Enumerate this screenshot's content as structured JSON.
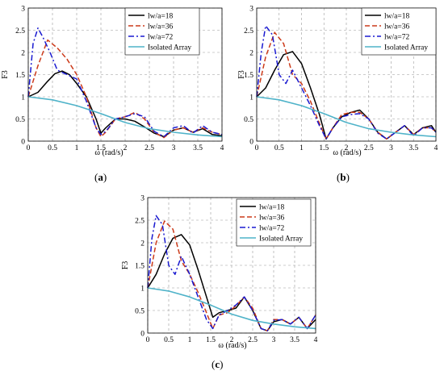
{
  "colors": {
    "black": "#000000",
    "red": "#cc3a1a",
    "blue": "#1a1ad0",
    "cyan": "#4fb3c9"
  },
  "chart_data": [
    {
      "type": "line",
      "caption": "a",
      "xlabel": "ω (rad/s)",
      "ylabel": "F3",
      "xlim": [
        0,
        4
      ],
      "ylim": [
        0,
        3
      ],
      "grid": true,
      "legend_position": "top-right",
      "xticks": [
        "0",
        "0.5",
        "1",
        "1.5",
        "2",
        "2.5",
        "3",
        "3.5",
        "4"
      ],
      "yticks": [
        "0",
        "0.5",
        "1",
        "1.5",
        "2",
        "2.5",
        "3"
      ],
      "legend": [
        "lw/a=18",
        "lw/a=36",
        "lw/a=72",
        "Isolated Array"
      ],
      "series": [
        {
          "name": "lw/a=18",
          "style": "solid",
          "color": "black",
          "x": [
            0,
            0.2,
            0.4,
            0.55,
            0.7,
            0.85,
            1.0,
            1.2,
            1.4,
            1.5,
            1.6,
            1.8,
            2.0,
            2.2,
            2.4,
            2.6,
            2.8,
            3.0,
            3.2,
            3.4,
            3.6,
            3.8,
            4.0
          ],
          "y": [
            1.0,
            1.1,
            1.35,
            1.52,
            1.58,
            1.5,
            1.3,
            1.0,
            0.5,
            0.18,
            0.3,
            0.5,
            0.5,
            0.45,
            0.32,
            0.18,
            0.1,
            0.25,
            0.3,
            0.2,
            0.28,
            0.15,
            0.12
          ]
        },
        {
          "name": "lw/a=36",
          "style": "dashed",
          "color": "red",
          "x": [
            0,
            0.2,
            0.4,
            0.6,
            0.8,
            1.0,
            1.2,
            1.4,
            1.5,
            1.6,
            1.8,
            2.0,
            2.2,
            2.4,
            2.6,
            2.8,
            3.0,
            3.2,
            3.4,
            3.6,
            3.8,
            4.0
          ],
          "y": [
            1.0,
            1.7,
            2.28,
            2.1,
            1.85,
            1.5,
            1.0,
            0.3,
            0.1,
            0.2,
            0.5,
            0.55,
            0.65,
            0.5,
            0.2,
            0.08,
            0.25,
            0.3,
            0.2,
            0.3,
            0.2,
            0.15
          ]
        },
        {
          "name": "lw/a=72",
          "style": "dashdot",
          "color": "blue",
          "x": [
            0,
            0.1,
            0.2,
            0.3,
            0.45,
            0.6,
            0.8,
            1.0,
            1.2,
            1.4,
            1.5,
            1.6,
            1.8,
            2.0,
            2.2,
            2.4,
            2.6,
            2.8,
            3.0,
            3.2,
            3.4,
            3.6,
            3.8,
            4.0
          ],
          "y": [
            1.0,
            2.2,
            2.55,
            2.35,
            2.0,
            1.6,
            1.5,
            1.4,
            0.9,
            0.3,
            0.15,
            0.22,
            0.5,
            0.55,
            0.62,
            0.55,
            0.22,
            0.1,
            0.3,
            0.35,
            0.18,
            0.35,
            0.2,
            0.15
          ]
        },
        {
          "name": "Isolated Array",
          "style": "solid",
          "color": "cyan",
          "x": [
            0,
            0.5,
            1.0,
            1.5,
            2.0,
            2.5,
            3.0,
            3.5,
            4.0
          ],
          "y": [
            1.0,
            0.93,
            0.8,
            0.62,
            0.42,
            0.28,
            0.2,
            0.14,
            0.1
          ]
        }
      ]
    },
    {
      "type": "line",
      "caption": "b",
      "xlabel": "ω (rad/s)",
      "ylabel": "F3",
      "xlim": [
        0,
        4
      ],
      "ylim": [
        0,
        3
      ],
      "grid": true,
      "legend_position": "top-right",
      "xticks": [
        "0",
        "0.5",
        "1",
        "1.5",
        "2",
        "2.5",
        "3",
        "3.5",
        "4"
      ],
      "yticks": [
        "0",
        "0.5",
        "1",
        "1.5",
        "2",
        "2.5",
        "3"
      ],
      "legend": [
        "lw/a=18",
        "lw/a=36",
        "lw/a=72",
        "Isolated Array"
      ],
      "series": [
        {
          "name": "lw/a=18",
          "style": "solid",
          "color": "black",
          "x": [
            0,
            0.2,
            0.4,
            0.6,
            0.8,
            1.0,
            1.2,
            1.4,
            1.55,
            1.7,
            1.9,
            2.1,
            2.3,
            2.5,
            2.7,
            2.9,
            3.1,
            3.3,
            3.5,
            3.7,
            3.9,
            4.0
          ],
          "y": [
            1.0,
            1.2,
            1.6,
            1.95,
            2.02,
            1.75,
            1.2,
            0.6,
            0.05,
            0.3,
            0.55,
            0.65,
            0.7,
            0.5,
            0.2,
            0.05,
            0.2,
            0.35,
            0.15,
            0.3,
            0.35,
            0.2
          ]
        },
        {
          "name": "lw/a=36",
          "style": "dashed",
          "color": "red",
          "x": [
            0,
            0.2,
            0.4,
            0.6,
            0.8,
            1.0,
            1.2,
            1.4,
            1.55,
            1.7,
            1.9,
            2.1,
            2.3,
            2.5,
            2.7,
            2.9,
            3.1,
            3.3,
            3.5,
            3.7,
            3.9,
            4.0
          ],
          "y": [
            1.0,
            1.9,
            2.45,
            2.2,
            1.5,
            1.3,
            0.9,
            0.4,
            0.05,
            0.3,
            0.6,
            0.65,
            0.65,
            0.5,
            0.2,
            0.05,
            0.2,
            0.35,
            0.15,
            0.3,
            0.3,
            0.2
          ]
        },
        {
          "name": "lw/a=72",
          "style": "dashdot",
          "color": "blue",
          "x": [
            0,
            0.1,
            0.2,
            0.35,
            0.5,
            0.65,
            0.8,
            1.0,
            1.2,
            1.4,
            1.55,
            1.7,
            1.9,
            2.1,
            2.3,
            2.5,
            2.7,
            2.9,
            3.1,
            3.3,
            3.5,
            3.7,
            3.9,
            4.0
          ],
          "y": [
            1.0,
            2.0,
            2.6,
            2.4,
            1.5,
            1.3,
            1.6,
            1.2,
            0.8,
            0.35,
            0.05,
            0.3,
            0.55,
            0.6,
            0.62,
            0.5,
            0.18,
            0.05,
            0.2,
            0.35,
            0.12,
            0.3,
            0.3,
            0.2
          ]
        },
        {
          "name": "Isolated Array",
          "style": "solid",
          "color": "cyan",
          "x": [
            0,
            0.5,
            1.0,
            1.5,
            2.0,
            2.5,
            3.0,
            3.5,
            4.0
          ],
          "y": [
            1.0,
            0.93,
            0.8,
            0.62,
            0.42,
            0.28,
            0.2,
            0.14,
            0.1
          ]
        }
      ]
    },
    {
      "type": "line",
      "caption": "c",
      "xlabel": "ω (rad/s)",
      "ylabel": "F3",
      "xlim": [
        0,
        4
      ],
      "ylim": [
        0,
        3
      ],
      "grid": true,
      "legend_position": "top-right",
      "xticks": [
        "0",
        "0.5",
        "1",
        "1.5",
        "2",
        "2.5",
        "3",
        "3.5",
        "4"
      ],
      "yticks": [
        "0",
        "0.5",
        "1",
        "1.5",
        "2",
        "2.5",
        "3"
      ],
      "legend": [
        "lw/a=18",
        "lw/a=36",
        "lw/a=72",
        "Isolated Array"
      ],
      "series": [
        {
          "name": "lw/a=18",
          "style": "solid",
          "color": "black",
          "x": [
            0,
            0.2,
            0.4,
            0.6,
            0.8,
            1.0,
            1.2,
            1.4,
            1.55,
            1.7,
            1.9,
            2.1,
            2.3,
            2.5,
            2.7,
            2.85,
            3.0,
            3.2,
            3.4,
            3.6,
            3.8,
            4.0
          ],
          "y": [
            1.0,
            1.3,
            1.75,
            2.1,
            2.18,
            1.95,
            1.4,
            0.8,
            0.35,
            0.45,
            0.5,
            0.55,
            0.8,
            0.5,
            0.1,
            0.05,
            0.25,
            0.3,
            0.2,
            0.35,
            0.1,
            0.3
          ]
        },
        {
          "name": "lw/a=36",
          "style": "dashed",
          "color": "red",
          "x": [
            0,
            0.2,
            0.4,
            0.6,
            0.8,
            1.0,
            1.2,
            1.4,
            1.55,
            1.7,
            1.9,
            2.1,
            2.3,
            2.5,
            2.7,
            2.85,
            3.0,
            3.2,
            3.4,
            3.6,
            3.8,
            4.0
          ],
          "y": [
            1.0,
            2.0,
            2.48,
            2.3,
            1.6,
            1.3,
            0.9,
            0.45,
            0.1,
            0.4,
            0.45,
            0.6,
            0.8,
            0.55,
            0.1,
            0.05,
            0.3,
            0.3,
            0.2,
            0.35,
            0.1,
            0.4
          ]
        },
        {
          "name": "lw/a=72",
          "style": "dashdot",
          "color": "blue",
          "x": [
            0,
            0.1,
            0.2,
            0.35,
            0.5,
            0.65,
            0.8,
            1.0,
            1.2,
            1.4,
            1.55,
            1.7,
            1.9,
            2.1,
            2.3,
            2.5,
            2.7,
            2.85,
            3.0,
            3.2,
            3.4,
            3.6,
            3.8,
            4.0
          ],
          "y": [
            1.0,
            2.1,
            2.6,
            2.4,
            1.5,
            1.3,
            1.7,
            1.3,
            0.8,
            0.3,
            0.1,
            0.4,
            0.5,
            0.62,
            0.8,
            0.5,
            0.1,
            0.05,
            0.28,
            0.3,
            0.2,
            0.35,
            0.1,
            0.4
          ]
        },
        {
          "name": "Isolated Array",
          "style": "solid",
          "color": "cyan",
          "x": [
            0,
            0.5,
            1.0,
            1.5,
            2.0,
            2.5,
            3.0,
            3.5,
            4.0
          ],
          "y": [
            1.0,
            0.93,
            0.8,
            0.62,
            0.42,
            0.28,
            0.2,
            0.14,
            0.1
          ]
        }
      ]
    }
  ]
}
